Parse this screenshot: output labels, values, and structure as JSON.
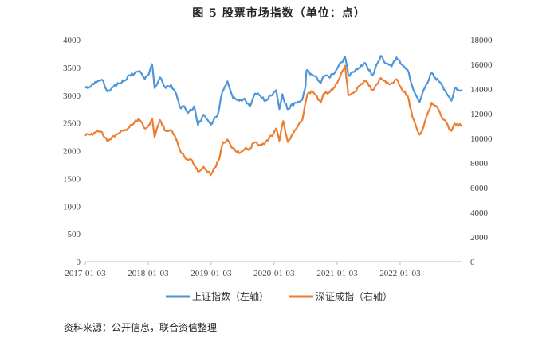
{
  "chart_data": {
    "type": "line",
    "title": "图 5   股票市场指数（单位：点）",
    "source": "资料来源：公开信息，联合资信整理",
    "x_ticks": [
      "2017-01-03",
      "2018-01-03",
      "2019-01-03",
      "2020-01-03",
      "2021-01-03",
      "2022-01-03"
    ],
    "xlim": [
      "2017-01-03",
      "2022-12-30"
    ],
    "y_left": {
      "label": "",
      "ticks": [
        0,
        500,
        1000,
        1500,
        2000,
        2500,
        3000,
        3500,
        4000
      ],
      "ylim": [
        0,
        4000
      ]
    },
    "y_right": {
      "label": "",
      "ticks": [
        0,
        2000,
        4000,
        6000,
        8000,
        10000,
        12000,
        14000,
        16000,
        18000
      ],
      "ylim": [
        0,
        18000
      ]
    },
    "grid": false,
    "legend_position": "bottom",
    "series": [
      {
        "name": "上证指数（左轴）",
        "axis": "left",
        "color": "#4e95d9",
        "points": [
          [
            "2017-01-03",
            3130
          ],
          [
            "2017-02-01",
            3150
          ],
          [
            "2017-03-01",
            3240
          ],
          [
            "2017-04-10",
            3280
          ],
          [
            "2017-05-10",
            3070
          ],
          [
            "2017-06-01",
            3110
          ],
          [
            "2017-07-10",
            3220
          ],
          [
            "2017-08-15",
            3250
          ],
          [
            "2017-09-15",
            3360
          ],
          [
            "2017-10-15",
            3390
          ],
          [
            "2017-11-13",
            3440
          ],
          [
            "2017-12-15",
            3290
          ],
          [
            "2018-01-10",
            3420
          ],
          [
            "2018-01-26",
            3560
          ],
          [
            "2018-02-09",
            3130
          ],
          [
            "2018-03-12",
            3320
          ],
          [
            "2018-04-15",
            3130
          ],
          [
            "2018-05-15",
            3190
          ],
          [
            "2018-06-15",
            3020
          ],
          [
            "2018-07-05",
            2780
          ],
          [
            "2018-08-01",
            2800
          ],
          [
            "2018-08-20",
            2680
          ],
          [
            "2018-09-26",
            2800
          ],
          [
            "2018-10-19",
            2460
          ],
          [
            "2018-11-20",
            2650
          ],
          [
            "2018-12-28",
            2490
          ],
          [
            "2019-01-03",
            2470
          ],
          [
            "2019-02-15",
            2700
          ],
          [
            "2019-03-08",
            3050
          ],
          [
            "2019-04-08",
            3250
          ],
          [
            "2019-05-10",
            2950
          ],
          [
            "2019-06-15",
            2900
          ],
          [
            "2019-07-15",
            2940
          ],
          [
            "2019-08-15",
            2800
          ],
          [
            "2019-09-15",
            3030
          ],
          [
            "2019-10-15",
            2990
          ],
          [
            "2019-11-15",
            2900
          ],
          [
            "2019-12-31",
            3050
          ],
          [
            "2020-01-15",
            3090
          ],
          [
            "2020-02-03",
            2750
          ],
          [
            "2020-02-20",
            3020
          ],
          [
            "2020-03-20",
            2750
          ],
          [
            "2020-04-30",
            2860
          ],
          [
            "2020-06-15",
            2920
          ],
          [
            "2020-07-03",
            3150
          ],
          [
            "2020-07-09",
            3450
          ],
          [
            "2020-08-15",
            3360
          ],
          [
            "2020-09-30",
            3220
          ],
          [
            "2020-10-15",
            3340
          ],
          [
            "2020-11-15",
            3330
          ],
          [
            "2020-12-15",
            3380
          ],
          [
            "2021-01-03",
            3480
          ],
          [
            "2021-02-18",
            3690
          ],
          [
            "2021-03-09",
            3360
          ],
          [
            "2021-04-15",
            3430
          ],
          [
            "2021-05-15",
            3500
          ],
          [
            "2021-06-15",
            3580
          ],
          [
            "2021-07-28",
            3360
          ],
          [
            "2021-09-13",
            3710
          ],
          [
            "2021-10-15",
            3570
          ],
          [
            "2021-11-15",
            3520
          ],
          [
            "2021-12-13",
            3680
          ],
          [
            "2022-01-15",
            3550
          ],
          [
            "2022-02-15",
            3460
          ],
          [
            "2022-03-16",
            3150
          ],
          [
            "2022-04-26",
            2880
          ],
          [
            "2022-05-20",
            3100
          ],
          [
            "2022-07-05",
            3400
          ],
          [
            "2022-08-15",
            3250
          ],
          [
            "2022-09-15",
            3100
          ],
          [
            "2022-10-28",
            2900
          ],
          [
            "2022-11-15",
            3120
          ],
          [
            "2022-12-30",
            3100
          ]
        ]
      },
      {
        "name": "深证成指（右轴）",
        "axis": "right",
        "color": "#ed7d31",
        "points": [
          [
            "2017-01-03",
            10200
          ],
          [
            "2017-02-01",
            10300
          ],
          [
            "2017-03-15",
            10600
          ],
          [
            "2017-04-10",
            10500
          ],
          [
            "2017-05-10",
            9800
          ],
          [
            "2017-06-15",
            10200
          ],
          [
            "2017-07-15",
            10400
          ],
          [
            "2017-08-15",
            10600
          ],
          [
            "2017-09-15",
            10900
          ],
          [
            "2017-10-15",
            11300
          ],
          [
            "2017-11-15",
            11500
          ],
          [
            "2017-12-15",
            10800
          ],
          [
            "2018-01-10",
            11100
          ],
          [
            "2018-01-26",
            11600
          ],
          [
            "2018-02-09",
            10100
          ],
          [
            "2018-03-12",
            11500
          ],
          [
            "2018-04-15",
            10600
          ],
          [
            "2018-05-15",
            10700
          ],
          [
            "2018-06-15",
            9900
          ],
          [
            "2018-07-05",
            9100
          ],
          [
            "2018-08-01",
            8500
          ],
          [
            "2018-09-15",
            8200
          ],
          [
            "2018-10-19",
            7300
          ],
          [
            "2018-11-20",
            7700
          ],
          [
            "2018-12-28",
            7150
          ],
          [
            "2019-01-03",
            7100
          ],
          [
            "2019-02-15",
            8200
          ],
          [
            "2019-03-15",
            9700
          ],
          [
            "2019-04-08",
            9900
          ],
          [
            "2019-05-10",
            9200
          ],
          [
            "2019-06-15",
            8800
          ],
          [
            "2019-07-15",
            9100
          ],
          [
            "2019-08-15",
            9200
          ],
          [
            "2019-09-15",
            9700
          ],
          [
            "2019-10-15",
            9500
          ],
          [
            "2019-11-15",
            9700
          ],
          [
            "2019-12-31",
            10400
          ],
          [
            "2020-01-15",
            10800
          ],
          [
            "2020-02-03",
            9800
          ],
          [
            "2020-02-25",
            11400
          ],
          [
            "2020-03-23",
            9700
          ],
          [
            "2020-04-30",
            10600
          ],
          [
            "2020-06-15",
            11500
          ],
          [
            "2020-07-15",
            13600
          ],
          [
            "2020-08-15",
            13800
          ],
          [
            "2020-09-30",
            12900
          ],
          [
            "2020-10-15",
            13600
          ],
          [
            "2020-11-15",
            13700
          ],
          [
            "2020-12-15",
            14100
          ],
          [
            "2021-01-03",
            14500
          ],
          [
            "2021-02-18",
            15900
          ],
          [
            "2021-03-09",
            13500
          ],
          [
            "2021-04-15",
            13800
          ],
          [
            "2021-05-15",
            14300
          ],
          [
            "2021-06-15",
            14700
          ],
          [
            "2021-07-28",
            13900
          ],
          [
            "2021-09-13",
            14900
          ],
          [
            "2021-10-15",
            14500
          ],
          [
            "2021-11-15",
            14500
          ],
          [
            "2021-12-13",
            14800
          ],
          [
            "2022-01-15",
            13900
          ],
          [
            "2022-02-15",
            13500
          ],
          [
            "2022-03-16",
            11700
          ],
          [
            "2022-04-26",
            10300
          ],
          [
            "2022-05-20",
            11000
          ],
          [
            "2022-07-05",
            12900
          ],
          [
            "2022-08-15",
            12300
          ],
          [
            "2022-09-15",
            11500
          ],
          [
            "2022-10-28",
            10600
          ],
          [
            "2022-11-15",
            11200
          ],
          [
            "2022-12-30",
            11000
          ]
        ]
      }
    ]
  }
}
